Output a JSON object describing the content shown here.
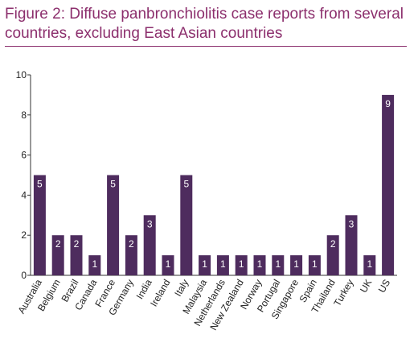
{
  "figure": {
    "title": "Figure 2: Diffuse panbronchiolitis case reports from several countries, excluding East Asian countries"
  },
  "colors": {
    "title": "#8c2f6d",
    "bar": "#4e2c5e",
    "bar_label": "#ffffff",
    "axis": "#333333",
    "text": "#222222"
  },
  "chart_data": {
    "type": "bar",
    "title": "Figure 2: Diffuse panbronchiolitis case reports from several countries, excluding East Asian countries",
    "xlabel": "",
    "ylabel": "",
    "categories": [
      "Australia",
      "Belgium",
      "Brazil",
      "Canada",
      "France",
      "Germany",
      "India",
      "Ireland",
      "Italy",
      "Malaysia",
      "Netherlands",
      "New Zealand",
      "Norway",
      "Portugal",
      "Singapore",
      "Spain",
      "Thailand",
      "Turkey",
      "UK",
      "US"
    ],
    "values": [
      5,
      2,
      2,
      1,
      5,
      2,
      3,
      1,
      5,
      1,
      1,
      1,
      1,
      1,
      1,
      1,
      2,
      3,
      1,
      9
    ],
    "ylim": [
      0,
      10
    ],
    "yticks": [
      "0",
      "2",
      "4",
      "6",
      "8",
      "10"
    ],
    "grid": false,
    "legend": "none",
    "data_labels": true
  }
}
